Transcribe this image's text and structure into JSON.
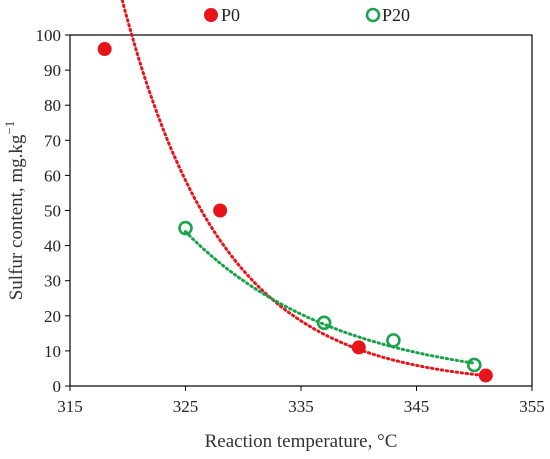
{
  "chart_data": {
    "type": "scatter",
    "xlabel": "Reaction temperature, °C",
    "ylabel_main": "Sulfur content, mg.kg",
    "ylabel_sup": "−1",
    "xlim": [
      315,
      355
    ],
    "ylim": [
      0,
      100
    ],
    "x_ticks": [
      315,
      325,
      335,
      345,
      355
    ],
    "y_ticks": [
      0,
      10,
      20,
      30,
      40,
      50,
      60,
      70,
      80,
      90,
      100
    ],
    "grid": false,
    "legend_position": "top",
    "series": [
      {
        "name": "P0",
        "marker": "filled-circle",
        "color": "#e8141b",
        "points": [
          {
            "x": 318,
            "y": 96
          },
          {
            "x": 328,
            "y": 50
          },
          {
            "x": 340,
            "y": 11
          },
          {
            "x": 351,
            "y": 3
          }
        ],
        "trendline": {
          "type": "exponential",
          "from": 319,
          "to": 351,
          "x0": 318,
          "a": 131.0,
          "b": 0.115
        }
      },
      {
        "name": "P20",
        "marker": "open-circle",
        "color": "#1aa34a",
        "points": [
          {
            "x": 325,
            "y": 45
          },
          {
            "x": 337,
            "y": 18
          },
          {
            "x": 343,
            "y": 13
          },
          {
            "x": 350,
            "y": 6
          }
        ],
        "trendline": {
          "type": "exponential",
          "from": 325,
          "to": 350,
          "x0": 325,
          "a": 44.0,
          "b": 0.0765
        }
      }
    ]
  }
}
